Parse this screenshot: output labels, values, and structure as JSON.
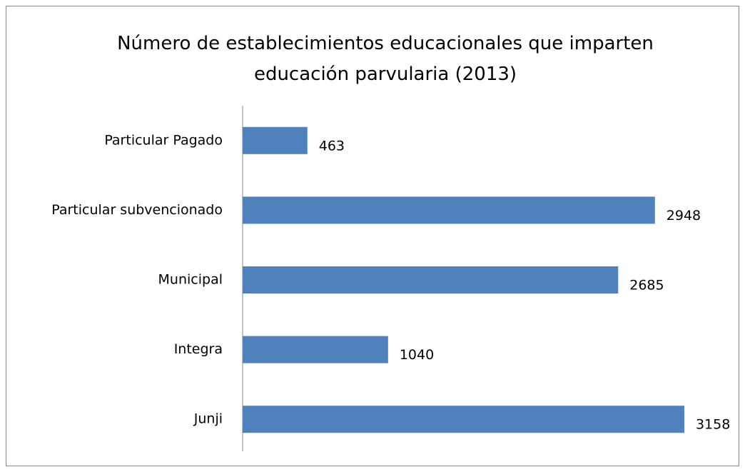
{
  "chart_data": {
    "type": "bar",
    "orientation": "horizontal",
    "title": "Número de establecimientos educacionales que imparten educación parvularia (2013)",
    "categories": [
      "Particular Pagado",
      "Particular subvencionado",
      "Municipal",
      "Integra",
      "Junji"
    ],
    "values": [
      463,
      2948,
      2685,
      1040,
      3158
    ],
    "color": "#4f81bd"
  }
}
